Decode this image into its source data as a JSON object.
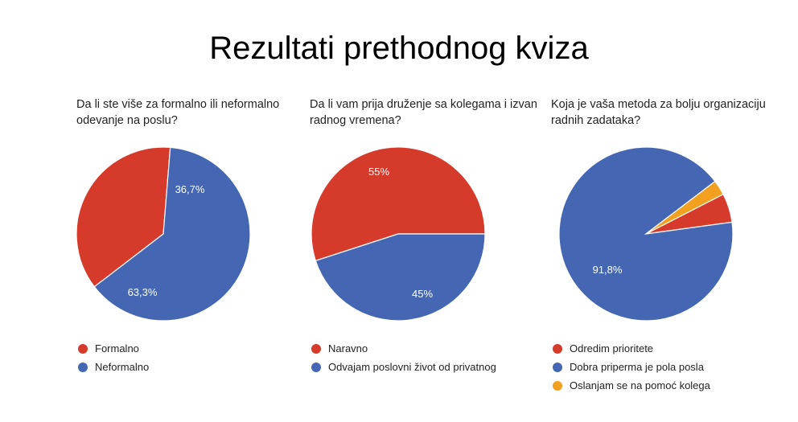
{
  "title": "Rezultati prethodnog kviza",
  "chart_data": [
    {
      "type": "pie",
      "title": "Da li ste više za formalno ili neformalno odevanje na poslu?",
      "categories": [
        "Formalno",
        "Neformalno"
      ],
      "values": [
        36.7,
        63.3
      ],
      "labels": [
        "36,7%",
        "63,3%"
      ],
      "colors": [
        "#d63a2a",
        "#4567b3"
      ],
      "legend": "bottom"
    },
    {
      "type": "pie",
      "title": "Da li vam prija druženje sa kolegama i izvan radnog vremena?",
      "categories": [
        "Naravno",
        "Odvajam poslovni život od privatnog"
      ],
      "values": [
        55,
        45
      ],
      "labels": [
        "55%",
        "45%"
      ],
      "colors": [
        "#d63a2a",
        "#4567b3"
      ],
      "legend": "bottom"
    },
    {
      "type": "pie",
      "title": "Koja je vaša metoda za bolju organizaciju radnih zadataka?",
      "categories": [
        "Odredim prioritete",
        "Dobra priperma je pola posla",
        "Oslanjam se na pomoć kolega"
      ],
      "values": [
        5.4,
        91.8,
        2.8
      ],
      "labels": [
        "",
        "91,8%",
        ""
      ],
      "colors": [
        "#d63a2a",
        "#4567b3",
        "#f2a020"
      ],
      "legend": "bottom"
    }
  ]
}
